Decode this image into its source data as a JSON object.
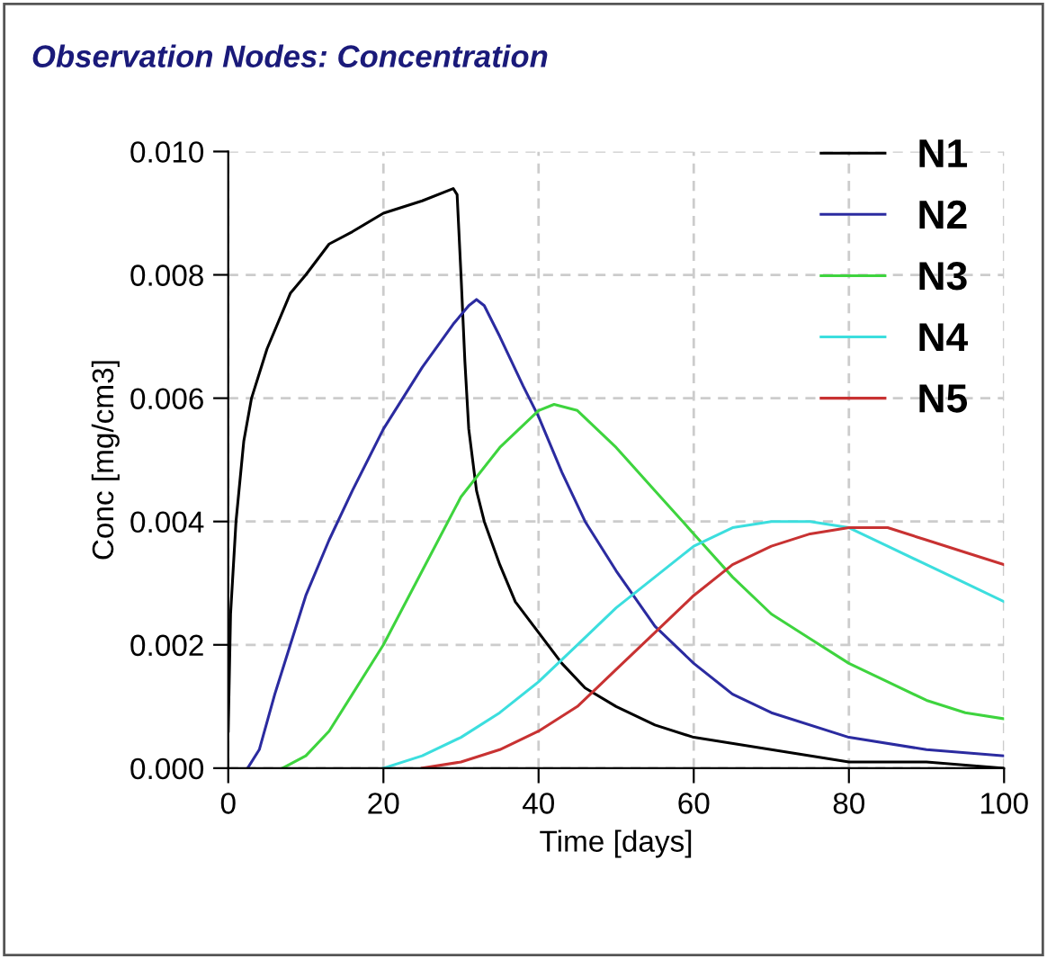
{
  "chart_data": {
    "type": "line",
    "title": "Observation Nodes: Concentration",
    "xlabel": "Time [days]",
    "ylabel": "Conc [mg/cm3]",
    "xlim": [
      0,
      100
    ],
    "xticks": [
      0,
      20,
      40,
      60,
      80,
      100
    ],
    "ylim": [
      0,
      0.01
    ],
    "yticks": [
      {
        "value": 0,
        "label": "0.000"
      },
      {
        "value": 0.002,
        "label": "0.002"
      },
      {
        "value": 0.004,
        "label": "0.004"
      },
      {
        "value": 0.006,
        "label": "0.006"
      },
      {
        "value": 0.008,
        "label": "0.008"
      },
      {
        "value": 0.01,
        "label": "0.010"
      }
    ],
    "grid": true,
    "legend": "top right",
    "line_style": "solid",
    "marker": "none",
    "series": [
      {
        "name": "N1",
        "color": "#000000",
        "x": [
          0,
          0.3,
          1,
          2,
          3,
          5,
          8,
          10,
          13,
          16,
          20,
          25,
          29,
          29.5,
          30,
          30.5,
          31,
          32,
          33,
          35,
          37,
          40,
          43,
          46,
          50,
          55,
          60,
          70,
          80,
          90,
          100
        ],
        "values": [
          0.0006,
          0.0025,
          0.004,
          0.0053,
          0.006,
          0.0068,
          0.0077,
          0.008,
          0.0085,
          0.0087,
          0.009,
          0.0092,
          0.0094,
          0.0093,
          0.008,
          0.0066,
          0.0055,
          0.0045,
          0.004,
          0.0033,
          0.0027,
          0.0022,
          0.0017,
          0.0013,
          0.001,
          0.0007,
          0.0005,
          0.0003,
          0.0001,
          0.0001,
          0
        ]
      },
      {
        "name": "N2",
        "color": "#2b2ba0",
        "x": [
          2.5,
          4,
          6,
          8,
          10,
          13,
          16,
          20,
          25,
          29,
          31,
          32,
          33,
          35,
          38,
          40,
          43,
          46,
          50,
          55,
          60,
          65,
          70,
          80,
          90,
          100
        ],
        "values": [
          0,
          0.0003,
          0.0012,
          0.002,
          0.0028,
          0.0037,
          0.0045,
          0.0055,
          0.0065,
          0.0072,
          0.0075,
          0.0076,
          0.0075,
          0.007,
          0.0062,
          0.0057,
          0.0048,
          0.004,
          0.0032,
          0.0023,
          0.0017,
          0.0012,
          0.0009,
          0.0005,
          0.0003,
          0.0002
        ]
      },
      {
        "name": "N3",
        "color": "#3ed43e",
        "x": [
          7,
          10,
          13,
          16,
          20,
          25,
          30,
          35,
          40,
          42,
          45,
          50,
          55,
          60,
          65,
          70,
          75,
          80,
          85,
          90,
          95,
          100
        ],
        "values": [
          0,
          0.0002,
          0.0006,
          0.0012,
          0.002,
          0.0032,
          0.0044,
          0.0052,
          0.0058,
          0.0059,
          0.0058,
          0.0052,
          0.0045,
          0.0038,
          0.0031,
          0.0025,
          0.0021,
          0.0017,
          0.0014,
          0.0011,
          0.0009,
          0.0008
        ]
      },
      {
        "name": "N4",
        "color": "#3cdede",
        "x": [
          20,
          25,
          30,
          35,
          40,
          45,
          50,
          55,
          60,
          65,
          70,
          75,
          80,
          85,
          90,
          95,
          100
        ],
        "values": [
          0,
          0.0002,
          0.0005,
          0.0009,
          0.0014,
          0.002,
          0.0026,
          0.0031,
          0.0036,
          0.0039,
          0.004,
          0.004,
          0.0039,
          0.0036,
          0.0033,
          0.003,
          0.0027
        ]
      },
      {
        "name": "N5",
        "color": "#c83232",
        "x": [
          25,
          30,
          35,
          40,
          45,
          50,
          55,
          60,
          65,
          70,
          75,
          80,
          85,
          90,
          95,
          100
        ],
        "values": [
          0,
          0.0001,
          0.0003,
          0.0006,
          0.001,
          0.0016,
          0.0022,
          0.0028,
          0.0033,
          0.0036,
          0.0038,
          0.0039,
          0.0039,
          0.0037,
          0.0035,
          0.0033
        ]
      }
    ]
  }
}
